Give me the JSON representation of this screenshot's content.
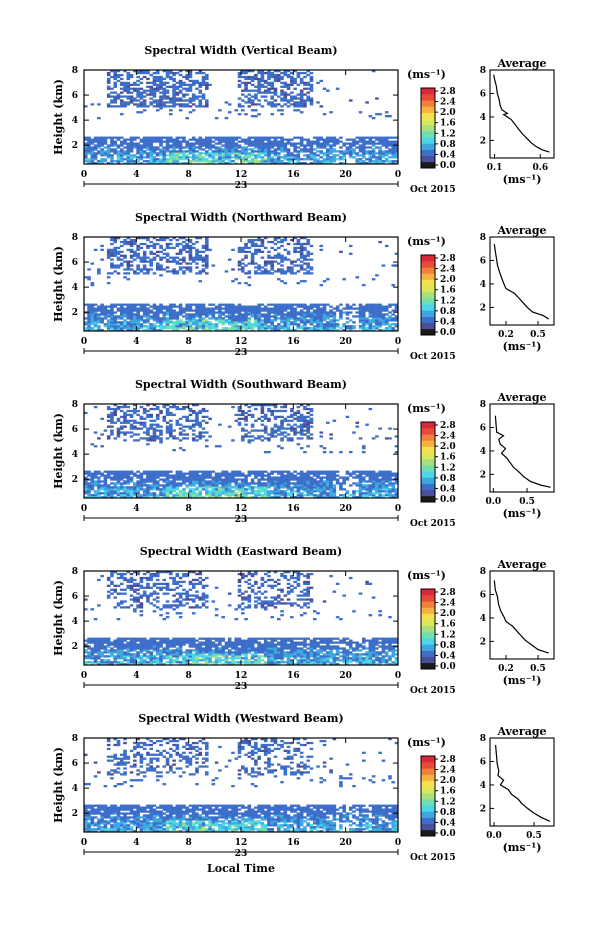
{
  "figure": {
    "xlabel": "Local Time"
  },
  "colorbar": {
    "unit_label": "(ms⁻¹)",
    "ticks": [
      "2.8",
      "2.4",
      "2.0",
      "1.6",
      "1.2",
      "0.8",
      "0.4",
      "0.0"
    ],
    "colors": [
      "#1a1a1a",
      "#4a4f9a",
      "#3d6ec9",
      "#3fa7e0",
      "#4cd6e8",
      "#71e0b0",
      "#a8e07e",
      "#d8e85a",
      "#f5e050",
      "#f6b240",
      "#f0803a",
      "#e84a3a",
      "#d8283a"
    ]
  },
  "chart_data": [
    {
      "type": "heatmap",
      "title": "Spectral Width (Vertical Beam)",
      "ylabel": "Height (km)",
      "xlabel": "",
      "x_ticks": [
        "0",
        "4",
        "8",
        "12",
        "16",
        "20",
        "0"
      ],
      "y_ticks": [
        "2",
        "4",
        "6",
        "8"
      ],
      "date_label": "23",
      "month_label": "Oct 2015",
      "xlim": [
        0,
        24
      ],
      "ylim": [
        0.5,
        8
      ],
      "zlim": [
        0,
        2.8
      ],
      "profile": {
        "title": "Average",
        "xlabel": "(ms⁻¹)",
        "x_ticks": [
          "0.1",
          "0.6"
        ],
        "xlim": [
          0.05,
          0.75
        ],
        "ylim": [
          0.5,
          8
        ],
        "y_ticks": [
          "2",
          "4",
          "6",
          "8"
        ],
        "points": [
          [
            0.7,
            1.0
          ],
          [
            0.62,
            1.2
          ],
          [
            0.55,
            1.5
          ],
          [
            0.5,
            1.8
          ],
          [
            0.45,
            2.2
          ],
          [
            0.4,
            2.6
          ],
          [
            0.36,
            3.0
          ],
          [
            0.32,
            3.4
          ],
          [
            0.28,
            3.8
          ],
          [
            0.2,
            4.2
          ],
          [
            0.24,
            4.3
          ],
          [
            0.18,
            4.6
          ],
          [
            0.16,
            5.0
          ],
          [
            0.15,
            5.5
          ],
          [
            0.13,
            6.0
          ],
          [
            0.12,
            6.6
          ],
          [
            0.1,
            7.2
          ],
          [
            0.09,
            7.6
          ]
        ]
      }
    },
    {
      "type": "heatmap",
      "title": "Spectral Width (Northward Beam)",
      "ylabel": "Height (km)",
      "xlabel": "",
      "x_ticks": [
        "0",
        "4",
        "8",
        "12",
        "16",
        "20",
        "0"
      ],
      "y_ticks": [
        "2",
        "4",
        "6",
        "8"
      ],
      "date_label": "23",
      "month_label": "Oct 2015",
      "xlim": [
        0,
        24
      ],
      "ylim": [
        0.5,
        8
      ],
      "zlim": [
        0,
        2.8
      ],
      "profile": {
        "title": "Average",
        "xlabel": "(ms⁻¹)",
        "x_ticks": [
          "0.2",
          "0.5"
        ],
        "xlim": [
          0.05,
          0.65
        ],
        "ylim": [
          0.5,
          8
        ],
        "y_ticks": [
          "2",
          "4",
          "6",
          "8"
        ],
        "points": [
          [
            0.6,
            1.0
          ],
          [
            0.55,
            1.3
          ],
          [
            0.45,
            1.6
          ],
          [
            0.4,
            2.0
          ],
          [
            0.36,
            2.4
          ],
          [
            0.32,
            2.8
          ],
          [
            0.28,
            3.2
          ],
          [
            0.2,
            3.6
          ],
          [
            0.18,
            4.0
          ],
          [
            0.16,
            4.5
          ],
          [
            0.14,
            5.0
          ],
          [
            0.12,
            5.6
          ],
          [
            0.11,
            6.2
          ],
          [
            0.1,
            6.8
          ],
          [
            0.09,
            7.4
          ]
        ]
      }
    },
    {
      "type": "heatmap",
      "title": "Spectral Width (Southward Beam)",
      "ylabel": "Height (km)",
      "xlabel": "",
      "x_ticks": [
        "0",
        "4",
        "8",
        "12",
        "16",
        "20",
        "0"
      ],
      "y_ticks": [
        "2",
        "4",
        "6",
        "8"
      ],
      "date_label": "23",
      "month_label": "Oct 2015",
      "xlim": [
        0,
        24
      ],
      "ylim": [
        0.5,
        8
      ],
      "zlim": [
        0,
        2.8
      ],
      "profile": {
        "title": "Average",
        "xlabel": "(ms⁻¹)",
        "x_ticks": [
          "0.0",
          "0.5"
        ],
        "xlim": [
          -0.05,
          0.9
        ],
        "ylim": [
          0.5,
          8
        ],
        "y_ticks": [
          "2",
          "4",
          "6",
          "8"
        ],
        "points": [
          [
            0.85,
            0.9
          ],
          [
            0.7,
            1.1
          ],
          [
            0.55,
            1.4
          ],
          [
            0.45,
            1.8
          ],
          [
            0.38,
            2.2
          ],
          [
            0.3,
            2.6
          ],
          [
            0.25,
            3.0
          ],
          [
            0.2,
            3.4
          ],
          [
            0.12,
            3.8
          ],
          [
            0.18,
            4.2
          ],
          [
            0.1,
            4.6
          ],
          [
            0.08,
            5.0
          ],
          [
            0.15,
            5.3
          ],
          [
            0.05,
            5.6
          ],
          [
            0.04,
            6.2
          ],
          [
            0.03,
            7.0
          ]
        ]
      }
    },
    {
      "type": "heatmap",
      "title": "Spectral Width (Eastward Beam)",
      "ylabel": "Height (km)",
      "xlabel": "",
      "x_ticks": [
        "0",
        "4",
        "8",
        "12",
        "16",
        "20",
        "0"
      ],
      "y_ticks": [
        "2",
        "4",
        "6",
        "8"
      ],
      "date_label": "23",
      "month_label": "Oct 2015",
      "xlim": [
        0,
        24
      ],
      "ylim": [
        0.5,
        8
      ],
      "zlim": [
        0,
        2.8
      ],
      "profile": {
        "title": "Average",
        "xlabel": "(ms⁻¹)",
        "x_ticks": [
          "0.2",
          "0.5"
        ],
        "xlim": [
          0.05,
          0.65
        ],
        "ylim": [
          0.5,
          8
        ],
        "y_ticks": [
          "2",
          "4",
          "6",
          "8"
        ],
        "points": [
          [
            0.6,
            1.0
          ],
          [
            0.5,
            1.3
          ],
          [
            0.44,
            1.7
          ],
          [
            0.38,
            2.1
          ],
          [
            0.34,
            2.5
          ],
          [
            0.3,
            2.9
          ],
          [
            0.26,
            3.3
          ],
          [
            0.2,
            3.7
          ],
          [
            0.18,
            4.1
          ],
          [
            0.15,
            4.6
          ],
          [
            0.13,
            5.2
          ],
          [
            0.12,
            5.8
          ],
          [
            0.1,
            6.4
          ],
          [
            0.09,
            7.2
          ]
        ]
      }
    },
    {
      "type": "heatmap",
      "title": "Spectral Width (Westward Beam)",
      "ylabel": "Height (km)",
      "xlabel": "Local Time",
      "x_ticks": [
        "0",
        "4",
        "8",
        "12",
        "16",
        "20",
        "0"
      ],
      "y_ticks": [
        "2",
        "4",
        "6",
        "8"
      ],
      "date_label": "23",
      "month_label": "Oct 2015",
      "xlim": [
        0,
        24
      ],
      "ylim": [
        0.5,
        8
      ],
      "zlim": [
        0,
        2.8
      ],
      "profile": {
        "title": "Average",
        "xlabel": "(ms⁻¹)",
        "x_ticks": [
          "0.0",
          "0.5"
        ],
        "xlim": [
          -0.05,
          0.75
        ],
        "ylim": [
          0.5,
          8
        ],
        "y_ticks": [
          "2",
          "4",
          "6",
          "8"
        ],
        "points": [
          [
            0.7,
            0.9
          ],
          [
            0.6,
            1.2
          ],
          [
            0.5,
            1.6
          ],
          [
            0.42,
            2.0
          ],
          [
            0.35,
            2.4
          ],
          [
            0.3,
            2.8
          ],
          [
            0.22,
            3.2
          ],
          [
            0.18,
            3.6
          ],
          [
            0.08,
            4.0
          ],
          [
            0.12,
            4.4
          ],
          [
            0.05,
            4.8
          ],
          [
            0.06,
            5.2
          ],
          [
            0.04,
            5.8
          ],
          [
            0.03,
            6.6
          ],
          [
            0.02,
            7.4
          ]
        ]
      }
    }
  ]
}
